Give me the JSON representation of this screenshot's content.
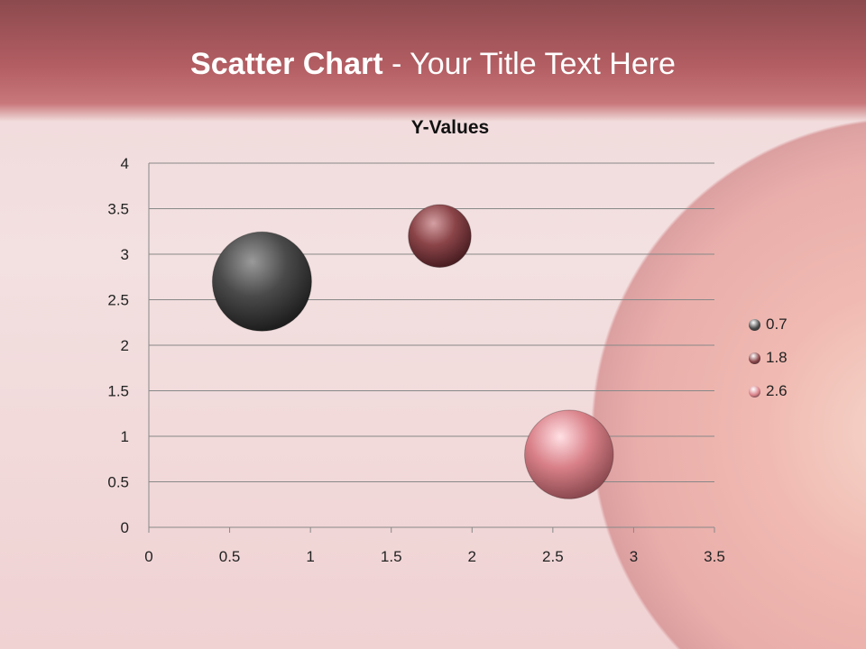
{
  "slide": {
    "title_bold": "Scatter Chart",
    "title_rest": " - Your Title Text Here"
  },
  "colors": {
    "band": "#b35e63",
    "series": [
      "#4a4a4a",
      "#8a4448",
      "#d98088"
    ]
  },
  "chart_data": {
    "type": "bubble",
    "title": "Y-Values",
    "xlim": [
      0,
      3.5
    ],
    "ylim": [
      0,
      4
    ],
    "xticks": [
      0,
      0.5,
      1,
      1.5,
      2,
      2.5,
      3,
      3.5
    ],
    "yticks": [
      0,
      0.5,
      1,
      1.5,
      2,
      2.5,
      3,
      3.5,
      4
    ],
    "grid": "horizontal",
    "legend": "right",
    "series": [
      {
        "name": "0.7",
        "x": 0.7,
        "y": 2.7,
        "size": 10
      },
      {
        "name": "1.8",
        "x": 1.8,
        "y": 3.2,
        "size": 4
      },
      {
        "name": "2.6",
        "x": 2.6,
        "y": 0.8,
        "size": 8
      }
    ]
  }
}
